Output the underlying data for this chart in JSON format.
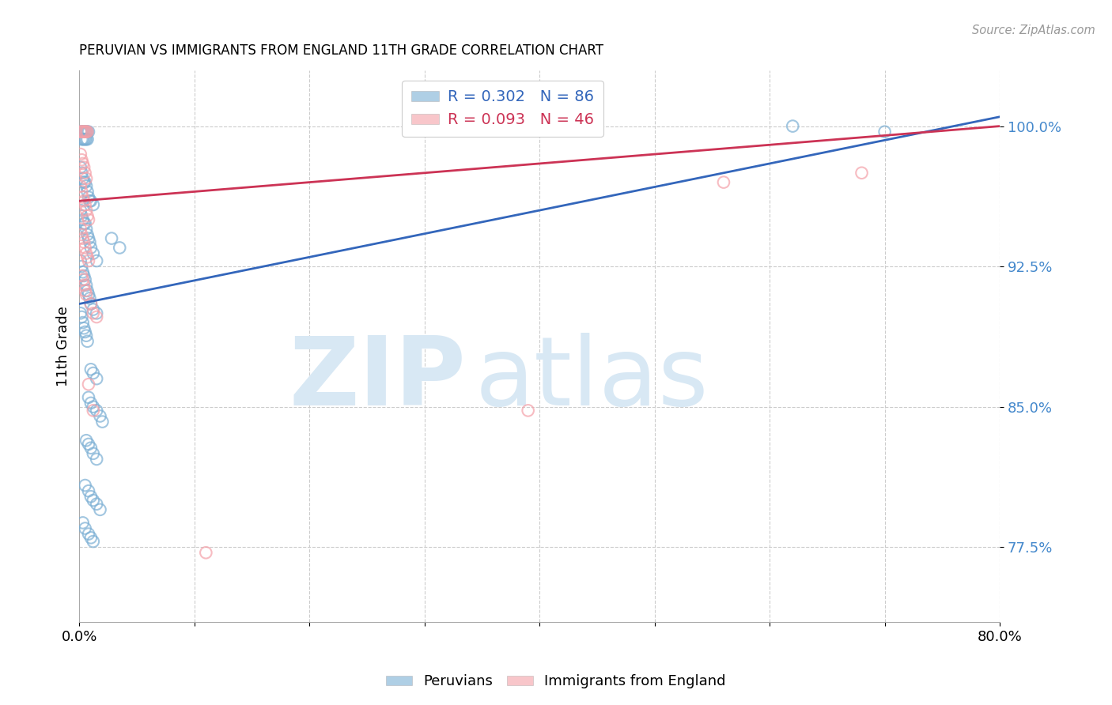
{
  "title": "PERUVIAN VS IMMIGRANTS FROM ENGLAND 11TH GRADE CORRELATION CHART",
  "source": "Source: ZipAtlas.com",
  "ylabel": "11th Grade",
  "yticks": [
    0.775,
    0.85,
    0.925,
    1.0
  ],
  "ytick_labels": [
    "77.5%",
    "85.0%",
    "92.5%",
    "100.0%"
  ],
  "xlim": [
    0.0,
    0.8
  ],
  "ylim": [
    0.735,
    1.03
  ],
  "blue_R": 0.302,
  "blue_N": 86,
  "pink_R": 0.093,
  "pink_N": 46,
  "blue_color": "#7BAFD4",
  "pink_color": "#F4A0A8",
  "blue_line_color": "#3366BB",
  "pink_line_color": "#CC3355",
  "legend_label_blue": "Peruvians",
  "legend_label_pink": "Immigrants from England",
  "watermark_zip": "ZIP",
  "watermark_atlas": "atlas",
  "watermark_color": "#D8E8F4",
  "background_color": "#FFFFFF",
  "blue_points": [
    [
      0.001,
      0.997
    ],
    [
      0.002,
      0.997
    ],
    [
      0.003,
      0.997
    ],
    [
      0.004,
      0.997
    ],
    [
      0.005,
      0.997
    ],
    [
      0.006,
      0.997
    ],
    [
      0.007,
      0.997
    ],
    [
      0.008,
      0.997
    ],
    [
      0.002,
      0.993
    ],
    [
      0.003,
      0.993
    ],
    [
      0.004,
      0.993
    ],
    [
      0.005,
      0.993
    ],
    [
      0.006,
      0.993
    ],
    [
      0.007,
      0.993
    ],
    [
      0.001,
      0.978
    ],
    [
      0.002,
      0.975
    ],
    [
      0.003,
      0.972
    ],
    [
      0.004,
      0.97
    ],
    [
      0.005,
      0.97
    ],
    [
      0.006,
      0.968
    ],
    [
      0.007,
      0.965
    ],
    [
      0.008,
      0.962
    ],
    [
      0.009,
      0.96
    ],
    [
      0.01,
      0.96
    ],
    [
      0.012,
      0.958
    ],
    [
      0.001,
      0.955
    ],
    [
      0.002,
      0.952
    ],
    [
      0.003,
      0.95
    ],
    [
      0.004,
      0.948
    ],
    [
      0.005,
      0.948
    ],
    [
      0.006,
      0.945
    ],
    [
      0.007,
      0.942
    ],
    [
      0.008,
      0.94
    ],
    [
      0.009,
      0.938
    ],
    [
      0.01,
      0.935
    ],
    [
      0.012,
      0.932
    ],
    [
      0.015,
      0.928
    ],
    [
      0.001,
      0.928
    ],
    [
      0.002,
      0.925
    ],
    [
      0.003,
      0.922
    ],
    [
      0.004,
      0.92
    ],
    [
      0.005,
      0.918
    ],
    [
      0.006,
      0.915
    ],
    [
      0.007,
      0.912
    ],
    [
      0.008,
      0.91
    ],
    [
      0.009,
      0.908
    ],
    [
      0.01,
      0.905
    ],
    [
      0.012,
      0.902
    ],
    [
      0.015,
      0.9
    ],
    [
      0.001,
      0.9
    ],
    [
      0.002,
      0.898
    ],
    [
      0.003,
      0.895
    ],
    [
      0.004,
      0.892
    ],
    [
      0.005,
      0.89
    ],
    [
      0.006,
      0.888
    ],
    [
      0.007,
      0.885
    ],
    [
      0.01,
      0.87
    ],
    [
      0.012,
      0.868
    ],
    [
      0.015,
      0.865
    ],
    [
      0.008,
      0.855
    ],
    [
      0.01,
      0.852
    ],
    [
      0.012,
      0.85
    ],
    [
      0.015,
      0.848
    ],
    [
      0.018,
      0.845
    ],
    [
      0.02,
      0.842
    ],
    [
      0.006,
      0.832
    ],
    [
      0.008,
      0.83
    ],
    [
      0.01,
      0.828
    ],
    [
      0.012,
      0.825
    ],
    [
      0.015,
      0.822
    ],
    [
      0.005,
      0.808
    ],
    [
      0.008,
      0.805
    ],
    [
      0.01,
      0.802
    ],
    [
      0.012,
      0.8
    ],
    [
      0.015,
      0.798
    ],
    [
      0.018,
      0.795
    ],
    [
      0.003,
      0.788
    ],
    [
      0.005,
      0.785
    ],
    [
      0.008,
      0.782
    ],
    [
      0.01,
      0.78
    ],
    [
      0.012,
      0.778
    ],
    [
      0.028,
      0.94
    ],
    [
      0.035,
      0.935
    ],
    [
      0.62,
      1.0
    ],
    [
      0.7,
      0.997
    ]
  ],
  "pink_points": [
    [
      0.001,
      0.997
    ],
    [
      0.002,
      0.997
    ],
    [
      0.003,
      0.997
    ],
    [
      0.004,
      0.997
    ],
    [
      0.005,
      0.997
    ],
    [
      0.006,
      0.997
    ],
    [
      0.007,
      0.997
    ],
    [
      0.001,
      0.985
    ],
    [
      0.002,
      0.982
    ],
    [
      0.003,
      0.98
    ],
    [
      0.004,
      0.978
    ],
    [
      0.005,
      0.975
    ],
    [
      0.006,
      0.972
    ],
    [
      0.001,
      0.968
    ],
    [
      0.002,
      0.965
    ],
    [
      0.003,
      0.962
    ],
    [
      0.004,
      0.96
    ],
    [
      0.005,
      0.958
    ],
    [
      0.006,
      0.955
    ],
    [
      0.007,
      0.952
    ],
    [
      0.008,
      0.95
    ],
    [
      0.001,
      0.945
    ],
    [
      0.002,
      0.942
    ],
    [
      0.003,
      0.94
    ],
    [
      0.004,
      0.938
    ],
    [
      0.005,
      0.935
    ],
    [
      0.006,
      0.932
    ],
    [
      0.007,
      0.93
    ],
    [
      0.008,
      0.928
    ],
    [
      0.002,
      0.92
    ],
    [
      0.003,
      0.918
    ],
    [
      0.004,
      0.915
    ],
    [
      0.005,
      0.912
    ],
    [
      0.006,
      0.91
    ],
    [
      0.01,
      0.905
    ],
    [
      0.012,
      0.9
    ],
    [
      0.015,
      0.898
    ],
    [
      0.008,
      0.862
    ],
    [
      0.012,
      0.848
    ],
    [
      0.39,
      0.848
    ],
    [
      0.56,
      0.97
    ],
    [
      0.11,
      0.772
    ],
    [
      0.68,
      0.975
    ]
  ]
}
